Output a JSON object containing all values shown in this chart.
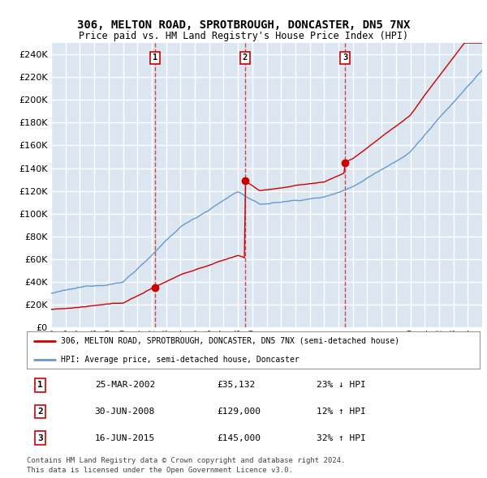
{
  "title1": "306, MELTON ROAD, SPROTBROUGH, DONCASTER, DN5 7NX",
  "title2": "Price paid vs. HM Land Registry's House Price Index (HPI)",
  "ytick_values": [
    0,
    20000,
    40000,
    60000,
    80000,
    100000,
    120000,
    140000,
    160000,
    180000,
    200000,
    220000,
    240000
  ],
  "ylim": [
    0,
    250000
  ],
  "xlim_start": 1995.0,
  "xlim_end": 2025.0,
  "plot_bg_color": "#dce6f1",
  "grid_color": "#ffffff",
  "red_color": "#cc0000",
  "blue_color": "#6699cc",
  "sale_dates": [
    2002.23,
    2008.5,
    2015.46
  ],
  "sale_prices": [
    35132,
    129000,
    145000
  ],
  "sale_labels": [
    "1",
    "2",
    "3"
  ],
  "legend_label1": "306, MELTON ROAD, SPROTBROUGH, DONCASTER, DN5 7NX (semi-detached house)",
  "legend_label2": "HPI: Average price, semi-detached house, Doncaster",
  "table_rows": [
    [
      "1",
      "25-MAR-2002",
      "£35,132",
      "23% ↓ HPI"
    ],
    [
      "2",
      "30-JUN-2008",
      "£129,000",
      "12% ↑ HPI"
    ],
    [
      "3",
      "16-JUN-2015",
      "£145,000",
      "32% ↑ HPI"
    ]
  ],
  "footer1": "Contains HM Land Registry data © Crown copyright and database right 2024.",
  "footer2": "This data is licensed under the Open Government Licence v3.0."
}
